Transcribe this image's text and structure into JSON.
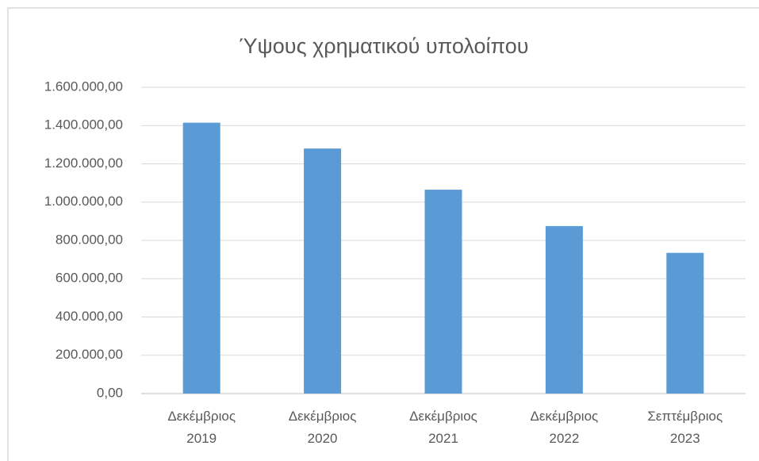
{
  "chart_data": {
    "type": "bar",
    "title": "Ύψους χρηματικού υπολοίπου",
    "categories": [
      [
        "Δεκέμβριος",
        "2019"
      ],
      [
        "Δεκέμβριος",
        "2020"
      ],
      [
        "Δεκέμβριος",
        "2021"
      ],
      [
        "Δεκέμβριος",
        "2022"
      ],
      [
        "Σεπτέμβριος",
        "2023"
      ]
    ],
    "values": [
      1415000,
      1280000,
      1065000,
      875000,
      735000
    ],
    "color": "#5b9bd5",
    "ylim": [
      0,
      1600000
    ],
    "yticks": [
      {
        "value": 0,
        "label": "0,00"
      },
      {
        "value": 200000,
        "label": "200.000,00"
      },
      {
        "value": 400000,
        "label": "400.000,00"
      },
      {
        "value": 600000,
        "label": "600.000,00"
      },
      {
        "value": 800000,
        "label": "800.000,00"
      },
      {
        "value": 1000000,
        "label": "1.000.000,00"
      },
      {
        "value": 1200000,
        "label": "1.200.000,00"
      },
      {
        "value": 1400000,
        "label": "1.400.000,00"
      },
      {
        "value": 1600000,
        "label": "1.600.000,00"
      }
    ],
    "grid": true
  }
}
